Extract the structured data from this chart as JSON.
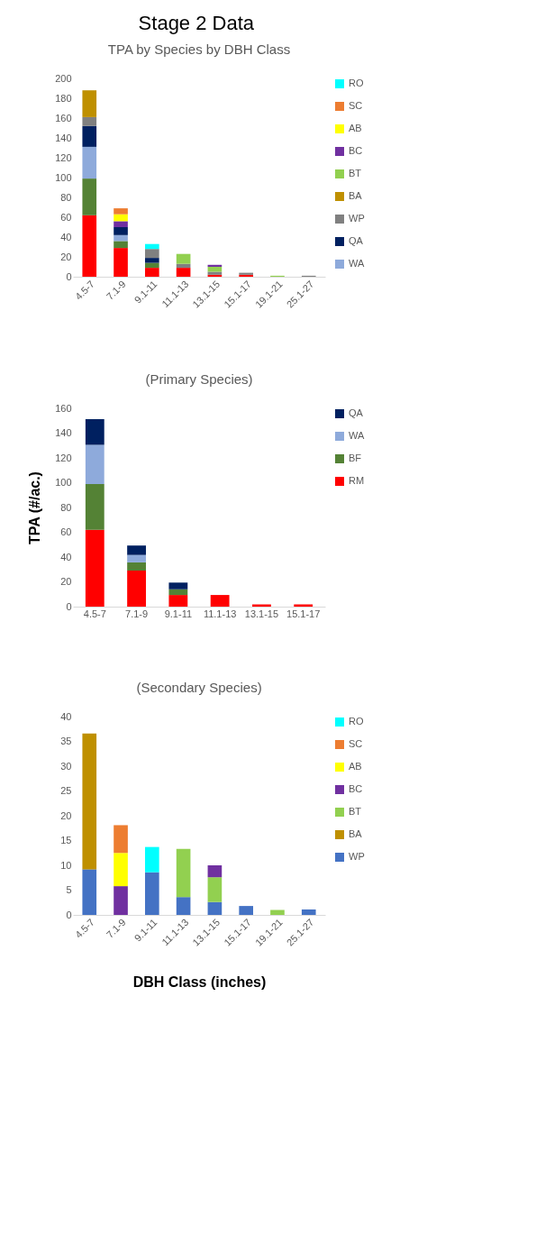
{
  "chart_data": [
    {
      "type": "bar",
      "title": "TPA by Species by DBH Class",
      "annotations": [
        "Stage 2 Data"
      ],
      "stacked": true,
      "legend": "right",
      "categories": [
        "4.5-7",
        "7.1-9",
        "9.1-11",
        "11.1-13",
        "13.1-15",
        "15.1-17",
        "19.1-21",
        "25.1-27"
      ],
      "ylim": [
        0,
        200
      ],
      "yticks": [
        0,
        20,
        40,
        60,
        80,
        100,
        120,
        140,
        160,
        180,
        200
      ],
      "series": [
        {
          "color": "#ff0000",
          "values": [
            62,
            29,
            9,
            9,
            2,
            2,
            null,
            null
          ]
        },
        {
          "color": "#548235",
          "values": [
            37,
            7,
            5,
            null,
            null,
            null,
            null,
            null
          ]
        },
        {
          "name": "WA",
          "color": "#8eaadb",
          "values": [
            32,
            6,
            null,
            null,
            null,
            null,
            null,
            null
          ]
        },
        {
          "name": "QA",
          "color": "#002060",
          "values": [
            21,
            8,
            5,
            null,
            null,
            null,
            null,
            null
          ]
        },
        {
          "name": "WP",
          "color": "#808080",
          "values": [
            9,
            null,
            9,
            4,
            3,
            2,
            null,
            1
          ]
        },
        {
          "name": "BA",
          "color": "#bf9000",
          "values": [
            27,
            null,
            null,
            null,
            null,
            null,
            null,
            null
          ]
        },
        {
          "name": "BT",
          "color": "#92d050",
          "values": [
            null,
            null,
            null,
            10,
            5,
            null,
            1,
            null
          ]
        },
        {
          "name": "BC",
          "color": "#7030a0",
          "values": [
            null,
            6,
            null,
            null,
            2,
            null,
            null,
            null
          ]
        },
        {
          "name": "AB",
          "color": "#ffff00",
          "values": [
            null,
            7,
            null,
            null,
            null,
            null,
            null,
            null
          ]
        },
        {
          "name": "SC",
          "color": "#ed7d31",
          "values": [
            null,
            6,
            null,
            null,
            null,
            null,
            null,
            null
          ]
        },
        {
          "name": "RO",
          "color": "#00ffff",
          "values": [
            null,
            null,
            5,
            null,
            null,
            null,
            null,
            null
          ]
        }
      ]
    },
    {
      "type": "bar",
      "title": "(Primary Species)",
      "ylabel": "TPA (#/ac.)",
      "stacked": true,
      "legend": "right",
      "categories": [
        "4.5-7",
        "7.1-9",
        "9.1-11",
        "11.1-13",
        "13.1-15",
        "15.1-17"
      ],
      "ylim": [
        0,
        160
      ],
      "yticks": [
        0,
        20,
        40,
        60,
        80,
        100,
        120,
        140,
        160
      ],
      "series": [
        {
          "name": "RM",
          "color": "#ff0000",
          "values": [
            62,
            29.1,
            9.4,
            9.4,
            1.8,
            1.8
          ]
        },
        {
          "name": "BF",
          "color": "#548235",
          "values": [
            37,
            6.6,
            4.6,
            null,
            null,
            null
          ]
        },
        {
          "name": "WA",
          "color": "#8eaadb",
          "values": [
            31.5,
            6.0,
            null,
            null,
            null,
            null
          ]
        },
        {
          "name": "QA",
          "color": "#002060",
          "values": [
            20.8,
            7.6,
            5.4,
            null,
            null,
            null
          ]
        }
      ]
    },
    {
      "type": "bar",
      "title": "(Secondary Species)",
      "xlabel": "DBH Class (inches)",
      "stacked": true,
      "legend": "right",
      "categories": [
        "4.5-7",
        "7.1-9",
        "9.1-11",
        "11.1-13",
        "13.1-15",
        "15.1-17",
        "19.1-21",
        "25.1-27"
      ],
      "ylim": [
        0,
        40
      ],
      "yticks": [
        0,
        5,
        10,
        15,
        20,
        25,
        30,
        35,
        40
      ],
      "series": [
        {
          "name": "WP",
          "color": "#4472c4",
          "values": [
            9.2,
            null,
            8.6,
            3.6,
            2.6,
            1.8,
            null,
            1.1
          ]
        },
        {
          "name": "BA",
          "color": "#bf9000",
          "values": [
            27.4,
            null,
            null,
            null,
            null,
            null,
            null,
            null
          ]
        },
        {
          "name": "BT",
          "color": "#92d050",
          "values": [
            null,
            null,
            null,
            9.7,
            5.0,
            null,
            1.0,
            null
          ]
        },
        {
          "name": "BC",
          "color": "#7030a0",
          "values": [
            null,
            5.8,
            null,
            null,
            2.4,
            null,
            null,
            null
          ]
        },
        {
          "name": "AB",
          "color": "#ffff00",
          "values": [
            null,
            6.7,
            null,
            null,
            null,
            null,
            null,
            null
          ]
        },
        {
          "name": "SC",
          "color": "#ed7d31",
          "values": [
            null,
            5.6,
            null,
            null,
            null,
            null,
            null,
            null
          ]
        },
        {
          "name": "RO",
          "color": "#00ffff",
          "values": [
            null,
            null,
            5.1,
            null,
            null,
            null,
            null,
            null
          ]
        }
      ]
    }
  ]
}
